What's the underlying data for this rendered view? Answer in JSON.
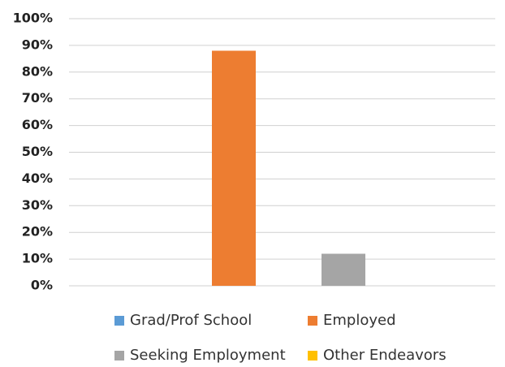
{
  "chart_data": {
    "type": "bar",
    "series": [
      {
        "name": "Grad/Prof School",
        "color": "#5b9bd5",
        "values": [
          0
        ]
      },
      {
        "name": "Employed",
        "color": "#ed7d31",
        "values": [
          88
        ]
      },
      {
        "name": "Seeking Employment",
        "color": "#a5a5a5",
        "values": [
          12
        ]
      },
      {
        "name": "Other Endeavors",
        "color": "#ffc000",
        "values": [
          0
        ]
      }
    ],
    "ylim": [
      0,
      100
    ],
    "yticks": [
      {
        "value": 0,
        "label": "0%"
      },
      {
        "value": 10,
        "label": "10%"
      },
      {
        "value": 20,
        "label": "20%"
      },
      {
        "value": 30,
        "label": "30%"
      },
      {
        "value": 40,
        "label": "40%"
      },
      {
        "value": 50,
        "label": "50%"
      },
      {
        "value": 60,
        "label": "60%"
      },
      {
        "value": 70,
        "label": "70%"
      },
      {
        "value": 80,
        "label": "80%"
      },
      {
        "value": 90,
        "label": "90%"
      },
      {
        "value": 100,
        "label": "100%"
      }
    ],
    "grid": true,
    "legend": "bottom"
  }
}
